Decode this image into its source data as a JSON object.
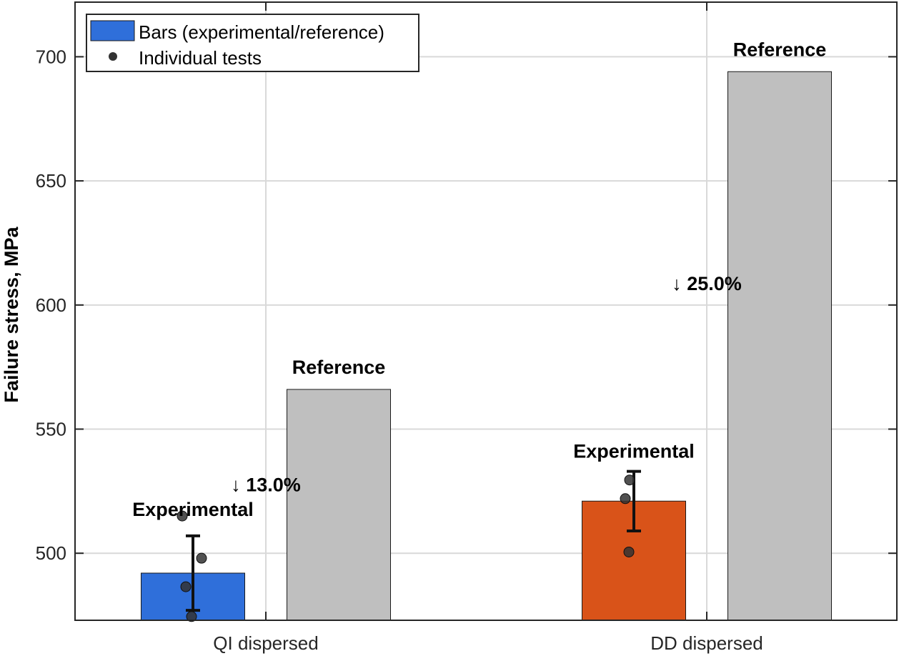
{
  "chart_data": {
    "type": "bar",
    "categories": [
      "QI dispersed",
      "DD dispersed"
    ],
    "ylabel": "Failure stress, MPa",
    "xlabel": "",
    "ylim": [
      473,
      722
    ],
    "yticks": [
      500,
      550,
      600,
      650,
      700
    ],
    "grid": true,
    "legend": {
      "placement": "top-left",
      "entries": [
        {
          "label": "Bars (experimental/reference)",
          "marker": "bar",
          "color": "#2F6FDA"
        },
        {
          "label": "Individual tests",
          "marker": "dot",
          "color": "#333333"
        }
      ]
    },
    "series": [
      {
        "role": "experimental",
        "values": [
          492,
          521
        ],
        "colors": [
          "#2F6FDA",
          "#D95319"
        ],
        "error_low": [
          477,
          509
        ],
        "error_high": [
          507,
          533
        ],
        "labels": [
          "Experimental",
          "Experimental"
        ]
      },
      {
        "role": "reference",
        "values": [
          566,
          694
        ],
        "colors": [
          "#BFBFBF",
          "#BFBFBF"
        ],
        "labels": [
          "Reference",
          "Reference"
        ]
      }
    ],
    "individual_tests": [
      [
        515,
        486.5,
        498,
        474.5
      ],
      [
        522,
        529.5,
        500.5
      ]
    ],
    "reductions": [
      "↓ 13.0%",
      "↓ 25.0%"
    ],
    "reduction_y": [
      525,
      606
    ]
  }
}
